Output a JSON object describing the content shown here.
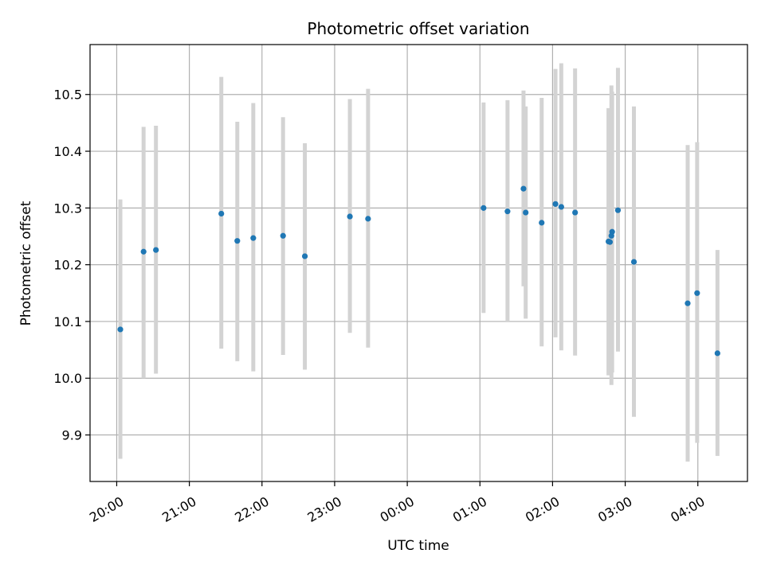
{
  "chart_data": {
    "type": "scatter",
    "title": "Photometric offset variation",
    "xlabel": "UTC time",
    "ylabel": "Photometric offset",
    "x_unit": "hours (UTC, continuing past midnight)",
    "xlim": [
      19.633,
      28.683
    ],
    "ylim": [
      9.818,
      10.588
    ],
    "x_ticks": [
      {
        "value": 20,
        "label": "20:00"
      },
      {
        "value": 21,
        "label": "21:00"
      },
      {
        "value": 22,
        "label": "22:00"
      },
      {
        "value": 23,
        "label": "23:00"
      },
      {
        "value": 24,
        "label": "00:00"
      },
      {
        "value": 25,
        "label": "01:00"
      },
      {
        "value": 26,
        "label": "02:00"
      },
      {
        "value": 27,
        "label": "03:00"
      },
      {
        "value": 28,
        "label": "04:00"
      }
    ],
    "y_ticks": [
      {
        "value": 9.9,
        "label": "9.9"
      },
      {
        "value": 10.0,
        "label": "10.0"
      },
      {
        "value": 10.1,
        "label": "10.1"
      },
      {
        "value": 10.2,
        "label": "10.2"
      },
      {
        "value": 10.3,
        "label": "10.3"
      },
      {
        "value": 10.4,
        "label": "10.4"
      },
      {
        "value": 10.5,
        "label": "10.5"
      }
    ],
    "grid": true,
    "point_color": "#1f77b4",
    "errorbar_color": "#d3d3d3",
    "points": [
      {
        "time": "20:03",
        "x": 20.05,
        "y": 10.086,
        "err_low": 9.858,
        "err_high": 10.315
      },
      {
        "time": "20:22",
        "x": 20.37,
        "y": 10.223,
        "err_low": 10.0,
        "err_high": 10.443
      },
      {
        "time": "20:32",
        "x": 20.54,
        "y": 10.226,
        "err_low": 10.008,
        "err_high": 10.445
      },
      {
        "time": "21:26",
        "x": 21.44,
        "y": 10.29,
        "err_low": 10.052,
        "err_high": 10.531
      },
      {
        "time": "21:40",
        "x": 21.66,
        "y": 10.242,
        "err_low": 10.03,
        "err_high": 10.452
      },
      {
        "time": "21:53",
        "x": 21.88,
        "y": 10.247,
        "err_low": 10.012,
        "err_high": 10.485
      },
      {
        "time": "22:18",
        "x": 22.29,
        "y": 10.251,
        "err_low": 10.041,
        "err_high": 10.46
      },
      {
        "time": "22:35",
        "x": 22.59,
        "y": 10.215,
        "err_low": 10.015,
        "err_high": 10.414
      },
      {
        "time": "23:12",
        "x": 23.21,
        "y": 10.285,
        "err_low": 10.08,
        "err_high": 10.492
      },
      {
        "time": "23:28",
        "x": 23.46,
        "y": 10.281,
        "err_low": 10.054,
        "err_high": 10.51
      },
      {
        "time": "01:03",
        "x": 25.05,
        "y": 10.3,
        "err_low": 10.115,
        "err_high": 10.486
      },
      {
        "time": "01:23",
        "x": 25.38,
        "y": 10.294,
        "err_low": 10.1,
        "err_high": 10.49
      },
      {
        "time": "01:36",
        "x": 25.6,
        "y": 10.334,
        "err_low": 10.162,
        "err_high": 10.507
      },
      {
        "time": "01:38",
        "x": 25.63,
        "y": 10.292,
        "err_low": 10.105,
        "err_high": 10.479
      },
      {
        "time": "01:51",
        "x": 25.85,
        "y": 10.274,
        "err_low": 10.056,
        "err_high": 10.494
      },
      {
        "time": "02:02",
        "x": 26.04,
        "y": 10.307,
        "err_low": 10.072,
        "err_high": 10.545
      },
      {
        "time": "02:07",
        "x": 26.12,
        "y": 10.302,
        "err_low": 10.049,
        "err_high": 10.555
      },
      {
        "time": "02:18",
        "x": 26.31,
        "y": 10.292,
        "err_low": 10.04,
        "err_high": 10.546
      },
      {
        "time": "02:46",
        "x": 26.77,
        "y": 10.241,
        "err_low": 10.005,
        "err_high": 10.476
      },
      {
        "time": "02:47",
        "x": 26.79,
        "y": 10.24,
        "err_low": 10.01,
        "err_high": 10.47
      },
      {
        "time": "02:48",
        "x": 26.81,
        "y": 10.251,
        "err_low": 9.988,
        "err_high": 10.516
      },
      {
        "time": "02:49",
        "x": 26.82,
        "y": 10.258,
        "err_low": 10.01,
        "err_high": 10.505
      },
      {
        "time": "02:54",
        "x": 26.9,
        "y": 10.296,
        "err_low": 10.047,
        "err_high": 10.547
      },
      {
        "time": "03:07",
        "x": 27.12,
        "y": 10.205,
        "err_low": 9.932,
        "err_high": 10.479
      },
      {
        "time": "03:52",
        "x": 27.86,
        "y": 10.132,
        "err_low": 9.853,
        "err_high": 10.411
      },
      {
        "time": "03:59",
        "x": 27.99,
        "y": 10.15,
        "err_low": 9.886,
        "err_high": 10.416
      },
      {
        "time": "04:15",
        "x": 28.27,
        "y": 10.044,
        "err_low": 9.863,
        "err_high": 10.226
      }
    ]
  }
}
